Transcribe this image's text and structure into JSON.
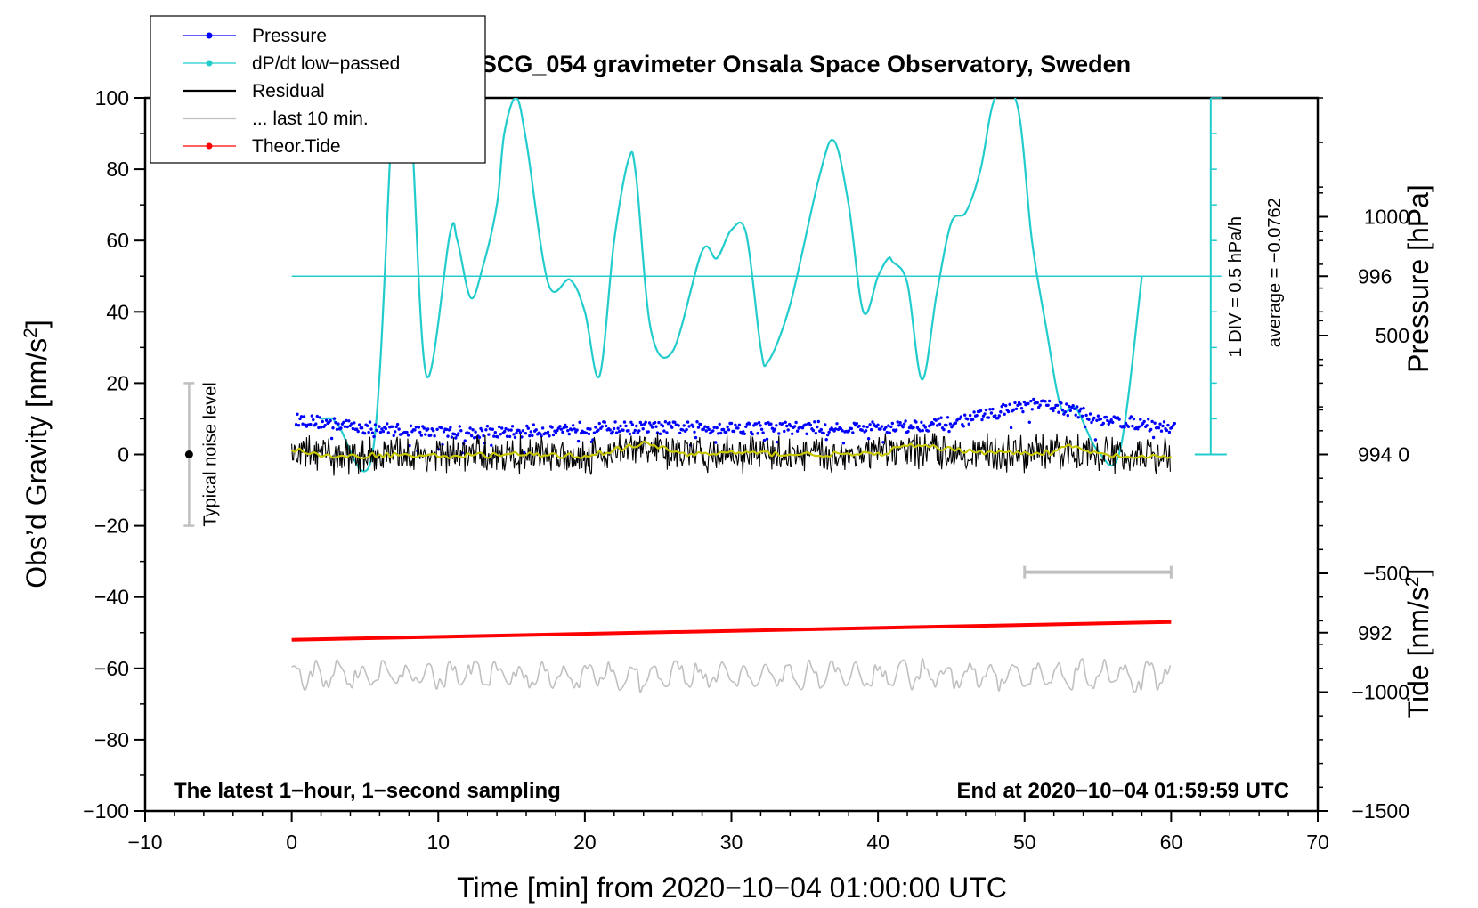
{
  "chart_data": {
    "type": "line",
    "title": "SCG_054 gravimeter Onsala Space Observatory, Sweden",
    "xlabel": "Time [min] from 2020−10−04 01:00:00 UTC",
    "ylabel_left": "Obs’d Gravity [nm/s",
    "ylabel_left_sup": "2",
    "ylabel_left_end": "]",
    "ylabel_right_pressure": "Pressure [hPa]",
    "ylabel_right_tide": "Tide [nm/s",
    "ylabel_right_tide_sup": "2",
    "ylabel_right_tide_end": "]",
    "xlim": [
      -10,
      70
    ],
    "ylim": [
      -100,
      100
    ],
    "xticks": [
      -10,
      0,
      10,
      20,
      30,
      40,
      50,
      60,
      70
    ],
    "xtick_labels": [
      "−10",
      "0",
      "10",
      "20",
      "30",
      "40",
      "50",
      "60",
      "70"
    ],
    "yticks": [
      -100,
      -80,
      -60,
      -40,
      -20,
      0,
      20,
      40,
      60,
      80,
      100
    ],
    "ytick_labels": [
      "−100",
      "−80",
      "−60",
      "−40",
      "−20",
      "0",
      "20",
      "40",
      "60",
      "80",
      "100"
    ],
    "pressure_axis": {
      "range_hPa": [
        990,
        998
      ],
      "ticks": [
        992,
        994,
        996
      ],
      "tick_labels": [
        "992",
        "994",
        "996"
      ]
    },
    "tide_axis": {
      "range": [
        -1500,
        1500
      ],
      "ticks": [
        -1500,
        -1000,
        -500,
        0,
        500,
        1000
      ],
      "tick_labels": [
        "−1500",
        "−1000",
        "−500",
        "0",
        "500",
        "1000"
      ]
    },
    "dpdt_scale": {
      "label_div": "1 DIV = 0.5 hPa/h",
      "label_avg": "average = −0.0762",
      "reference_y": 50,
      "div_ticks": 10
    },
    "noise_bar": {
      "x": -7,
      "center": 0,
      "half_range": 20,
      "label": "Typical noise level"
    },
    "last10_bar": {
      "x_start": 50,
      "x_end": 60,
      "y": -33
    },
    "annotations": {
      "left": "The latest 1−hour, 1−second sampling",
      "right": "End at 2020−10−04 01:59:59 UTC"
    },
    "legend": [
      {
        "label": "Pressure",
        "color": "#0000ff",
        "marker": true
      },
      {
        "label": "dP/dt low−passed",
        "color": "#22cccc",
        "marker": true
      },
      {
        "label": "Residual",
        "color": "#000000",
        "marker": false
      },
      {
        "label": "... last 10 min.",
        "color": "#c0c0c0",
        "marker": false
      },
      {
        "label": "Theor.Tide",
        "color": "#ff0000",
        "marker": true
      }
    ],
    "colors": {
      "pressure": "#0000ff",
      "dpdt": "#22cccc",
      "residual": "#000000",
      "residual_smooth": "#c8c800",
      "last10": "#c0c0c0",
      "tide": "#ff0000"
    },
    "series": [
      {
        "name": "Pressure",
        "units": "hPa",
        "x": [
          0,
          5,
          10,
          15,
          20,
          25,
          30,
          35,
          40,
          45,
          50,
          52,
          55,
          60
        ],
        "y": [
          994.4,
          994.3,
          994.25,
          994.25,
          994.3,
          994.3,
          994.3,
          994.3,
          994.3,
          994.35,
          994.55,
          994.55,
          994.4,
          994.3
        ]
      },
      {
        "name": "dP/dt low-passed",
        "units": "plot units",
        "x": [
          2,
          2.8,
          3.2,
          5.5,
          6.8,
          7.2,
          7.7,
          8.2,
          9.2,
          10.8,
          11.3,
          12.2,
          13,
          14,
          14.5,
          15.3,
          16,
          17.5,
          19,
          20,
          21,
          22,
          23,
          23.5,
          24.5,
          26,
          28,
          29,
          30,
          31,
          32,
          32.5,
          34,
          36,
          37,
          38,
          39,
          40,
          40.7,
          41,
          42,
          43,
          44,
          45,
          46,
          47,
          48,
          49.5,
          50.5,
          51.5,
          52.5,
          53.5,
          55,
          56.5,
          58
        ],
        "y": [
          10,
          10,
          8,
          0,
          90,
          110,
          108,
          90,
          22,
          62,
          60,
          44,
          52,
          70,
          90,
          100,
          88,
          48,
          49,
          40,
          22,
          60,
          83,
          78,
          35,
          29,
          57,
          55,
          63,
          62,
          30,
          26,
          42,
          78,
          88,
          70,
          40,
          50,
          55,
          54,
          48,
          21,
          45,
          65,
          68,
          80,
          100,
          98,
          60,
          35,
          13,
          13,
          1,
          1,
          50
        ]
      },
      {
        "name": "Residual",
        "units": "nm/s^2",
        "baseline": 0,
        "spread": 5
      },
      {
        "name": "Residual smoothed",
        "x": [
          0,
          3,
          6,
          10,
          15,
          20,
          24,
          27,
          30,
          35,
          40,
          42,
          45,
          48,
          50,
          52,
          53,
          55,
          58,
          60
        ],
        "y": [
          1.5,
          -1,
          0,
          -0.5,
          0,
          -0.5,
          3,
          0,
          0.5,
          0,
          0,
          2.5,
          1.5,
          0.5,
          0.5,
          0.5,
          2.5,
          0,
          -1,
          -0.5
        ]
      },
      {
        "name": "... last 10 min.",
        "units": "nm/s^2",
        "baseline": -62,
        "spread": 4
      },
      {
        "name": "Theor.Tide",
        "units": "nm/s^2",
        "x": [
          0,
          60
        ],
        "y": [
          -52,
          -47
        ]
      }
    ]
  }
}
